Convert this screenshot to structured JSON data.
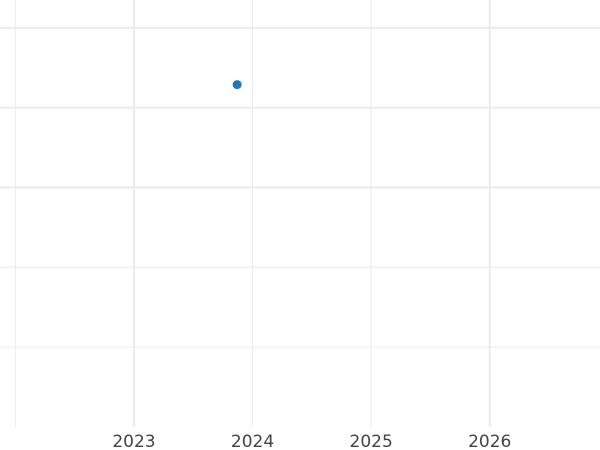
{
  "chart_data": {
    "type": "scatter",
    "title": "",
    "xlabel": "",
    "ylabel": "",
    "x_ticks": [
      2023,
      2024,
      2025,
      2026
    ],
    "x_tick_labels": [
      "2023",
      "2024",
      "2025",
      "2026"
    ],
    "x_minor_gridlines": [
      2022,
      2024,
      2025
    ],
    "x_major_gridlines": [
      2023,
      2026
    ],
    "y_gridlines": [
      0,
      1,
      2,
      3,
      4
    ],
    "y_tick_labels_shown": false,
    "xlim": [
      2021.87,
      2026.93
    ],
    "ylim": [
      -1,
      4.35
    ],
    "grid": true,
    "legend": "none",
    "series": [
      {
        "points": [
          {
            "x": 2023.87,
            "y": 3.29
          }
        ],
        "color": "#1f77b4"
      }
    ],
    "grid_color": "#ebebeb"
  }
}
